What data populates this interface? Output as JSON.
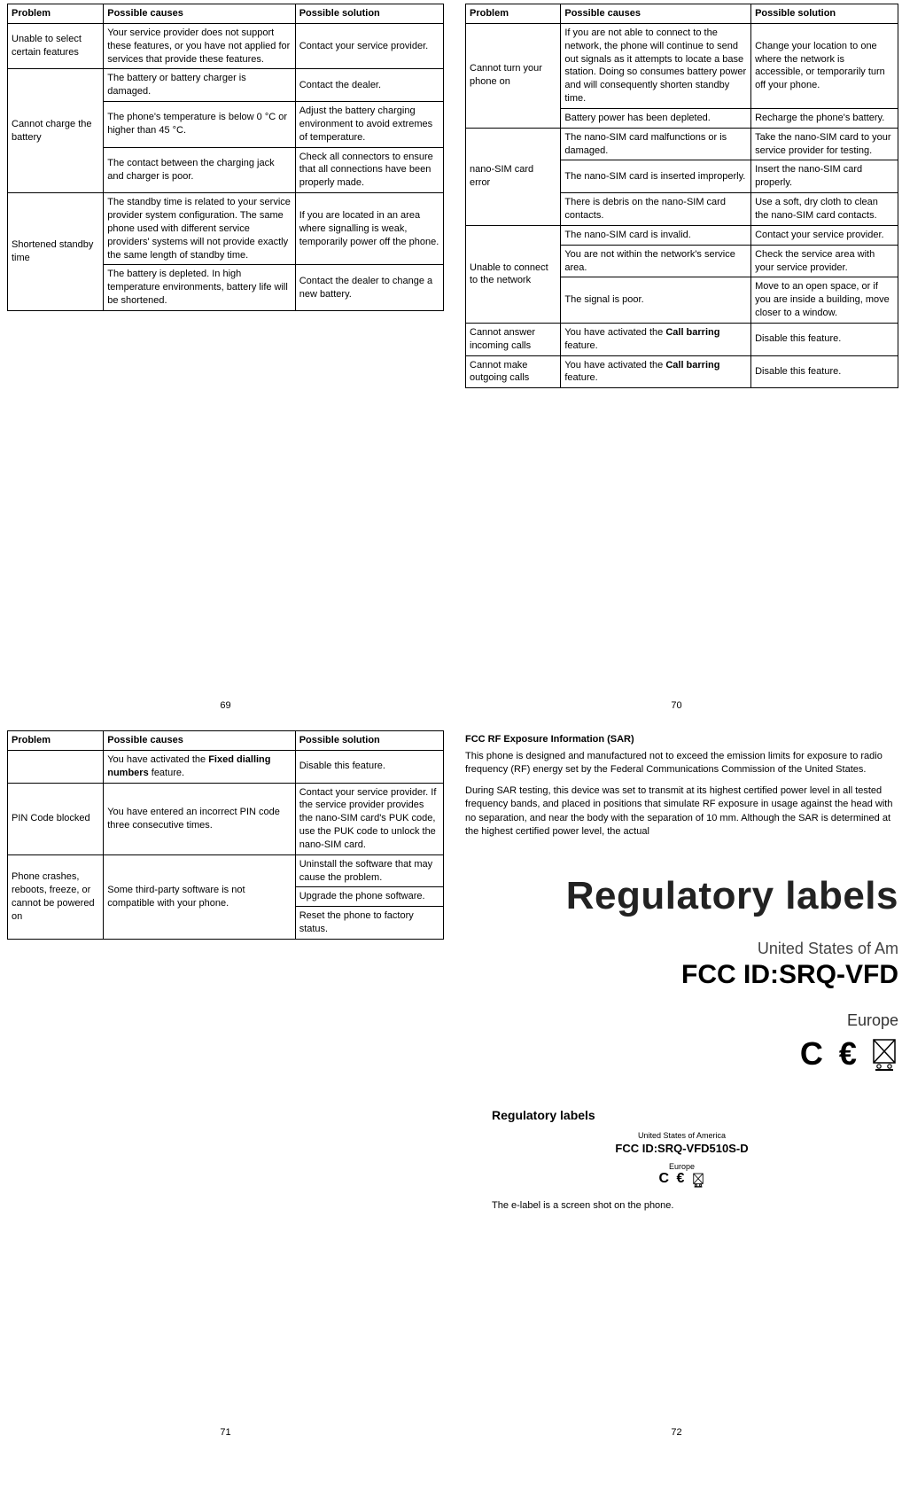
{
  "headers": {
    "problem": "Problem",
    "causes": "Possible causes",
    "solution": "Possible solution"
  },
  "page69": {
    "num": "69",
    "rows": [
      {
        "problem": "Unable to select certain features",
        "cause": "Your service provider does not support these features, or you have not applied for services that provide these features.",
        "solution": "Contact your service provider.",
        "pspan": 1
      },
      {
        "problem": "Cannot charge the battery",
        "cause": "The battery or battery charger is damaged.",
        "solution": "Contact the dealer.",
        "pspan": 3
      },
      {
        "cause": "The phone's temperature is below 0 °C or higher than 45 °C.",
        "solution": "Adjust the battery charging environment to avoid extremes of temperature."
      },
      {
        "cause": "The contact between the charging jack and charger is poor.",
        "solution": "Check all connectors to ensure that all connections have been properly made."
      },
      {
        "problem": "Shortened standby time",
        "cause": "The standby time is related to your service provider system configuration. The same phone used with different service providers' systems will not provide exactly the same length of standby time.",
        "solution": "If you are located in an area where signalling is weak, temporarily power off the phone.",
        "pspan": 2
      },
      {
        "cause": "The battery is depleted. In high temperature environments, battery life will be shortened.",
        "solution": "Contact the dealer to change a new battery."
      }
    ]
  },
  "page70": {
    "num": "70",
    "rows": [
      {
        "problem": "Cannot turn your phone on",
        "cause": "If you are not able to connect to the network, the phone will continue to send out signals as it attempts to locate a base station. Doing so consumes battery power and will consequently shorten standby time.",
        "solution": "Change your location to one where the network is accessible, or temporarily turn off your phone.",
        "noProblemFirst": true
      },
      {
        "causeOnly": "Battery power has been depleted.",
        "solutionOnly": "Recharge the phone's battery."
      },
      {
        "problem": "nano-SIM card error",
        "cause": "The nano-SIM card malfunctions or is damaged.",
        "solution": "Take the nano-SIM card to your service provider for testing.",
        "pspan": 3
      },
      {
        "cause": "The nano-SIM card is inserted improperly.",
        "solution": "Insert the nano-SIM card properly."
      },
      {
        "cause": "There is debris on the nano-SIM card contacts.",
        "solution": "Use a soft, dry cloth to clean the nano-SIM card contacts."
      },
      {
        "problem": "Unable to connect to the network",
        "cause": "The nano-SIM card is invalid.",
        "solution": "Contact your service provider.",
        "pspan": 3
      },
      {
        "cause": "You are not within the network's service area.",
        "solution": "Check the service area with your service provider."
      },
      {
        "cause": "The signal is poor.",
        "solution": "Move to an open space, or if you are inside a building, move closer to a window."
      },
      {
        "problem": "Cannot answer incoming calls",
        "causeHtml": "You have activated the <b>Call barring</b> feature.",
        "solution": "Disable this feature.",
        "pspan": 1
      },
      {
        "problem": "Cannot make outgoing calls",
        "causeHtml": "You have activated the <b>Call barring</b> feature.",
        "solution": "Disable this feature.",
        "pspan": 1
      }
    ]
  },
  "page71": {
    "num": "71",
    "rows": [
      {
        "problem": "",
        "causeHtml": "You have activated the <b>Fixed dialling numbers</b> feature.",
        "solution": "Disable this feature.",
        "pspan": 1
      },
      {
        "problem": "PIN Code blocked",
        "cause": "You have entered an incorrect PIN code three consecutive times.",
        "solution": "Contact your service provider. If the service provider provides the nano-SIM card's PUK code, use the PUK code to unlock the nano-SIM card.",
        "pspan": 1
      },
      {
        "problem": "Phone crashes, reboots, freeze, or cannot be powered on",
        "cause": "Some third-party software is not compatible with your phone.",
        "solutions": [
          "Uninstall the software that may cause the problem.",
          "Upgrade the phone software.",
          "Reset the phone to factory status."
        ],
        "pspan": 1
      }
    ]
  },
  "page72": {
    "num": "72",
    "sar_title": "FCC RF Exposure Information (SAR)",
    "sar_p1": "This phone is designed and manufactured not to exceed the emission limits for exposure to radio frequency (RF) energy set by the Federal Communications Commission of the United States.",
    "sar_p2": "During SAR testing, this device was set to transmit at its highest certified power level in all tested frequency bands, and placed in positions that simulate RF exposure in usage against the head with no separation, and near the body with the separation of 10 mm. Although the SAR is determined at the highest certified power level, the actual",
    "reg_large": "Regulatory labels",
    "reg_usa": "United States of Am",
    "reg_fcc": "FCC ID:SRQ-VFD",
    "reg_eu": "Europe",
    "reg_small_title": "Regulatory labels",
    "reg_small_usa": "United States of America",
    "reg_small_fcc": "FCC ID:SRQ-VFD510S-D",
    "reg_small_eu": "Europe",
    "elabel": "The e-label is a screen shot on the phone."
  }
}
